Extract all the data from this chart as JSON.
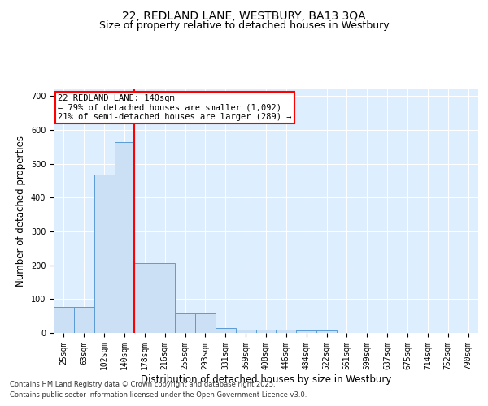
{
  "title1": "22, REDLAND LANE, WESTBURY, BA13 3QA",
  "title2": "Size of property relative to detached houses in Westbury",
  "xlabel": "Distribution of detached houses by size in Westbury",
  "ylabel": "Number of detached properties",
  "categories": [
    "25sqm",
    "63sqm",
    "102sqm",
    "140sqm",
    "178sqm",
    "216sqm",
    "255sqm",
    "293sqm",
    "331sqm",
    "369sqm",
    "408sqm",
    "446sqm",
    "484sqm",
    "522sqm",
    "561sqm",
    "599sqm",
    "637sqm",
    "675sqm",
    "714sqm",
    "752sqm",
    "790sqm"
  ],
  "values": [
    77,
    77,
    468,
    563,
    207,
    207,
    57,
    57,
    14,
    10,
    9,
    9,
    7,
    7,
    0,
    0,
    0,
    0,
    0,
    0,
    0
  ],
  "bar_color": "#cce0f5",
  "bar_edge_color": "#5b9bd5",
  "red_line_index": 3,
  "annotation_text": "22 REDLAND LANE: 140sqm\n← 79% of detached houses are smaller (1,092)\n21% of semi-detached houses are larger (289) →",
  "annotation_box_color": "white",
  "annotation_box_edge_color": "red",
  "footnote1": "Contains HM Land Registry data © Crown copyright and database right 2025.",
  "footnote2": "Contains public sector information licensed under the Open Government Licence v3.0.",
  "ylim": [
    0,
    720
  ],
  "yticks": [
    0,
    100,
    200,
    300,
    400,
    500,
    600,
    700
  ],
  "background_color": "#ddeeff",
  "grid_color": "white",
  "title_fontsize": 10,
  "subtitle_fontsize": 9,
  "axis_label_fontsize": 8.5,
  "tick_fontsize": 7,
  "annotation_fontsize": 7.5,
  "footnote_fontsize": 6
}
